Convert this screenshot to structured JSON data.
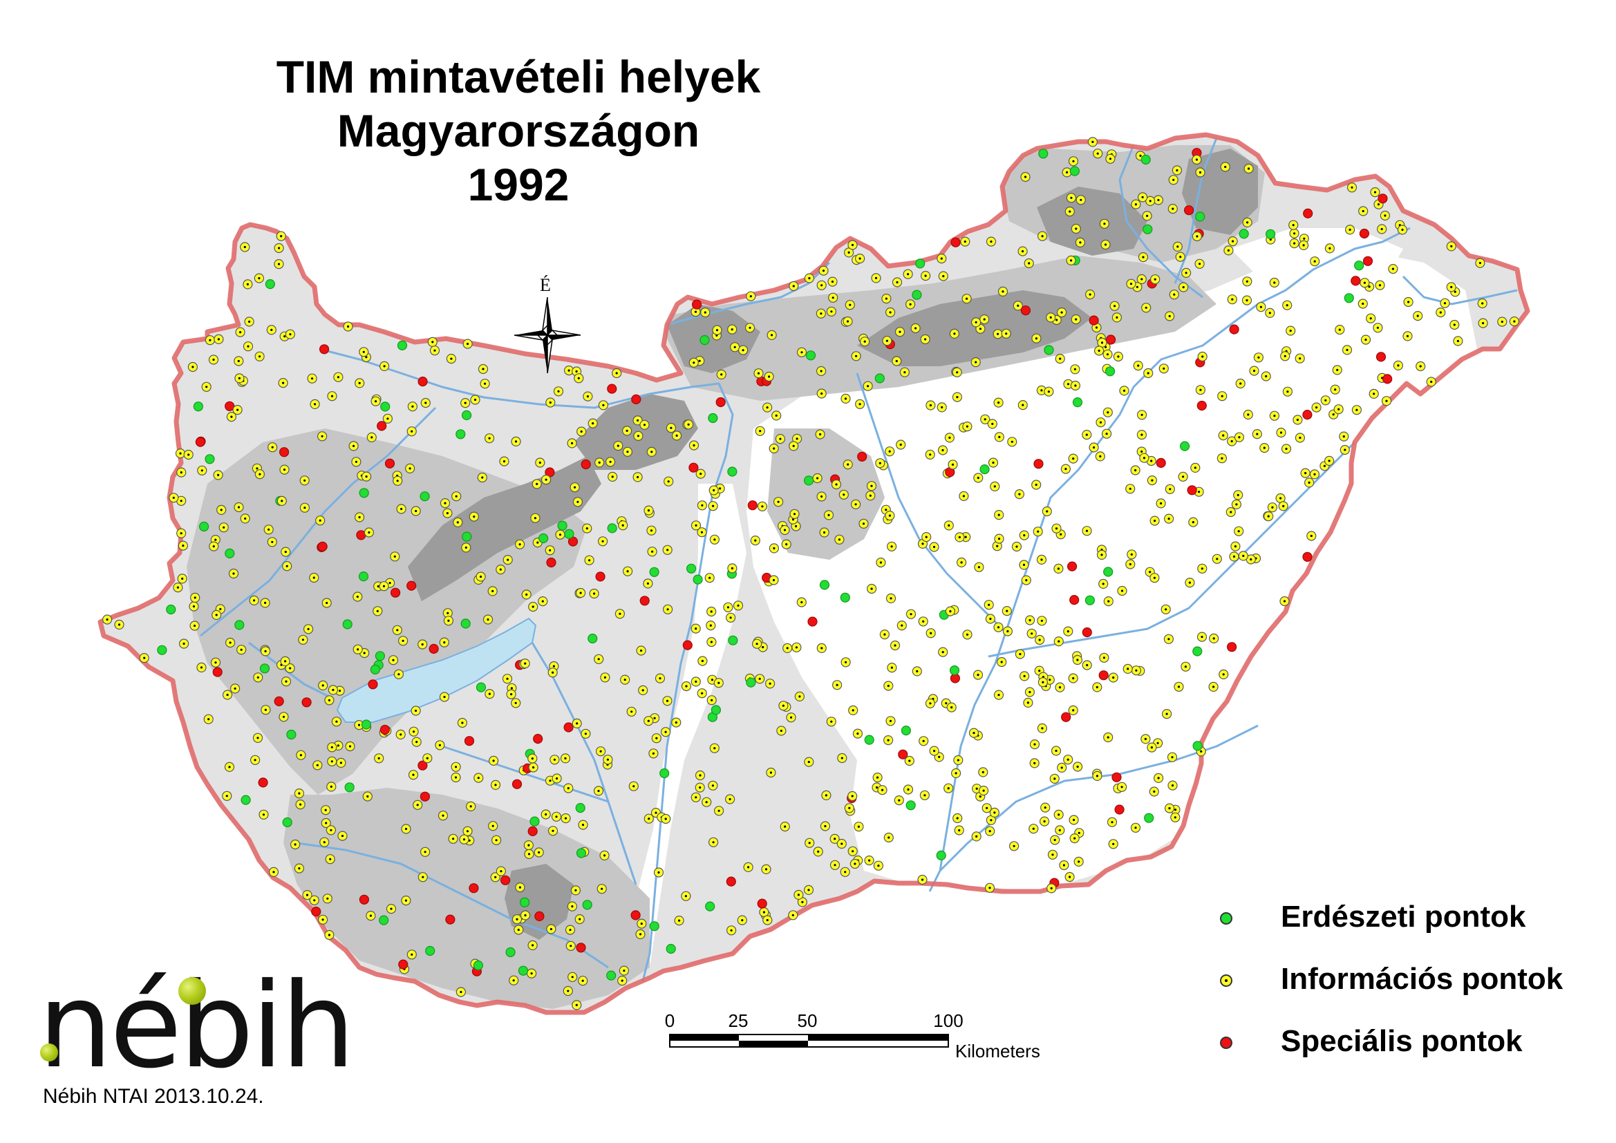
{
  "title": {
    "line1": "TIM mintavételi helyek",
    "line2": "Magyarországon",
    "line3": "1992"
  },
  "compass": {
    "north_label": "É"
  },
  "legend": {
    "items": [
      {
        "label": "Erdészeti pontok",
        "color": "#22dd33",
        "kind": "forest"
      },
      {
        "label": "Információs pontok",
        "color": "#ffff22",
        "kind": "info"
      },
      {
        "label": "Speciális pontok",
        "color": "#ee1111",
        "kind": "special"
      }
    ]
  },
  "scale": {
    "ticks": [
      "0",
      "25",
      "50",
      "100"
    ],
    "unit": "Kilometers"
  },
  "logo": {
    "text": "nébih"
  },
  "footer": "Nébih NTAI 2013.10.24.",
  "colors": {
    "forest": "#22dd33",
    "info": "#ffff22",
    "special": "#ee1111",
    "border": "#e06a6a",
    "river": "#7ab0e0",
    "lake": "#bfe2f2",
    "lowland": "#ffffff",
    "plain": "#e3e3e3",
    "hills": "#c4c4c4",
    "mountains": "#9a9a9a"
  }
}
